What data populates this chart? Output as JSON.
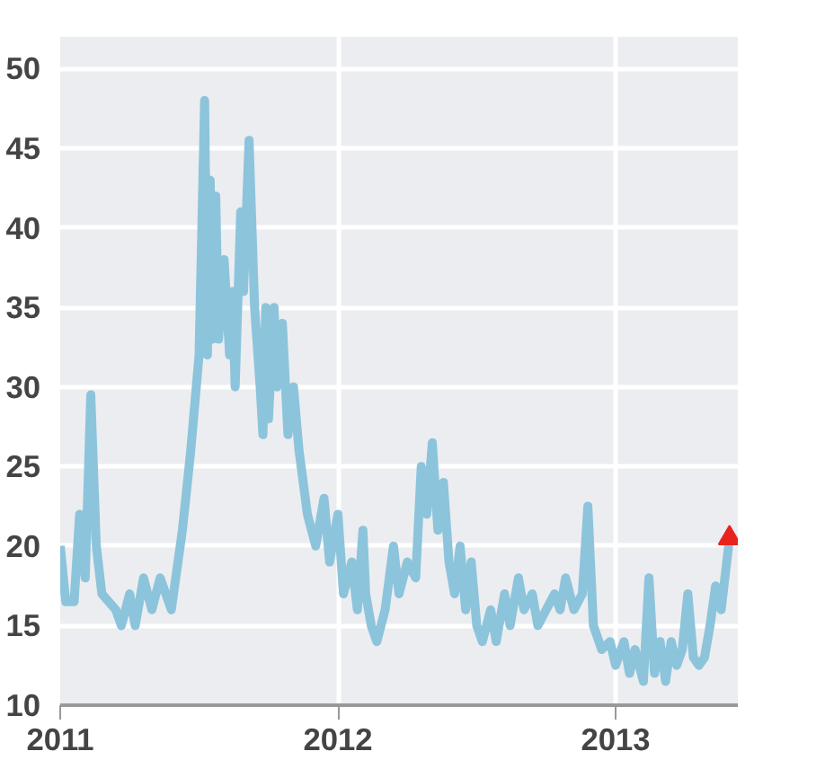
{
  "chart_data": {
    "type": "line",
    "xlim": [
      2011,
      2013.44
    ],
    "ylim": [
      10,
      52
    ],
    "xticks": [
      2011,
      2012,
      2013
    ],
    "yticks": [
      10,
      15,
      20,
      25,
      30,
      35,
      40,
      45,
      50
    ],
    "grid": true,
    "marker": "none",
    "line_style": "solid",
    "series": [
      {
        "color": "#8cc4dc",
        "x": [
          2011.0,
          2011.02,
          2011.05,
          2011.07,
          2011.09,
          2011.11,
          2011.13,
          2011.15,
          2011.2,
          2011.22,
          2011.25,
          2011.27,
          2011.3,
          2011.33,
          2011.36,
          2011.4,
          2011.44,
          2011.47,
          2011.5,
          2011.52,
          2011.53,
          2011.54,
          2011.55,
          2011.56,
          2011.57,
          2011.59,
          2011.61,
          2011.62,
          2011.63,
          2011.65,
          2011.66,
          2011.68,
          2011.7,
          2011.72,
          2011.73,
          2011.74,
          2011.75,
          2011.77,
          2011.78,
          2011.8,
          2011.82,
          2011.84,
          2011.86,
          2011.89,
          2011.92,
          2011.95,
          2011.97,
          2012.0,
          2012.02,
          2012.05,
          2012.07,
          2012.09,
          2012.1,
          2012.12,
          2012.14,
          2012.17,
          2012.2,
          2012.22,
          2012.25,
          2012.28,
          2012.3,
          2012.32,
          2012.34,
          2012.36,
          2012.38,
          2012.4,
          2012.42,
          2012.44,
          2012.46,
          2012.48,
          2012.5,
          2012.52,
          2012.55,
          2012.57,
          2012.6,
          2012.62,
          2012.65,
          2012.67,
          2012.7,
          2012.72,
          2012.75,
          2012.78,
          2012.8,
          2012.82,
          2012.85,
          2012.88,
          2012.9,
          2012.92,
          2012.95,
          2012.98,
          2013.0,
          2013.03,
          2013.05,
          2013.07,
          2013.1,
          2013.12,
          2013.14,
          2013.16,
          2013.18,
          2013.2,
          2013.22,
          2013.24,
          2013.26,
          2013.28,
          2013.3,
          2013.32,
          2013.34,
          2013.36,
          2013.38,
          2013.4,
          2013.41
        ],
        "values": [
          20,
          16.5,
          16.5,
          22,
          18,
          29.5,
          20,
          17,
          16,
          15,
          17,
          15,
          18,
          16,
          18,
          16,
          21,
          26,
          32,
          48,
          32,
          43,
          33,
          42,
          33,
          38,
          32,
          36,
          30,
          41,
          36,
          45.5,
          35,
          30,
          27,
          35,
          28,
          35,
          30,
          34,
          27,
          30,
          26,
          22,
          20,
          23,
          19,
          22,
          17,
          19,
          16,
          21,
          17,
          15,
          14,
          16,
          20,
          17,
          19,
          18,
          25,
          22,
          26.5,
          21,
          24,
          19,
          17,
          20,
          16,
          19,
          15,
          14,
          16,
          14,
          17,
          15,
          18,
          16,
          17,
          15,
          16,
          17,
          16,
          18,
          16,
          17,
          22.5,
          15,
          13.5,
          14,
          12.5,
          14,
          12,
          13.5,
          11.5,
          18,
          12,
          14,
          11.5,
          14,
          12.5,
          13.5,
          17,
          13,
          12.5,
          13,
          15,
          17.5,
          16,
          19,
          20.5
        ]
      },
      {
        "type": "scatter",
        "marker": "triangle",
        "color": "#e8231e",
        "x": [
          2013.41
        ],
        "values": [
          20.5
        ]
      }
    ]
  }
}
